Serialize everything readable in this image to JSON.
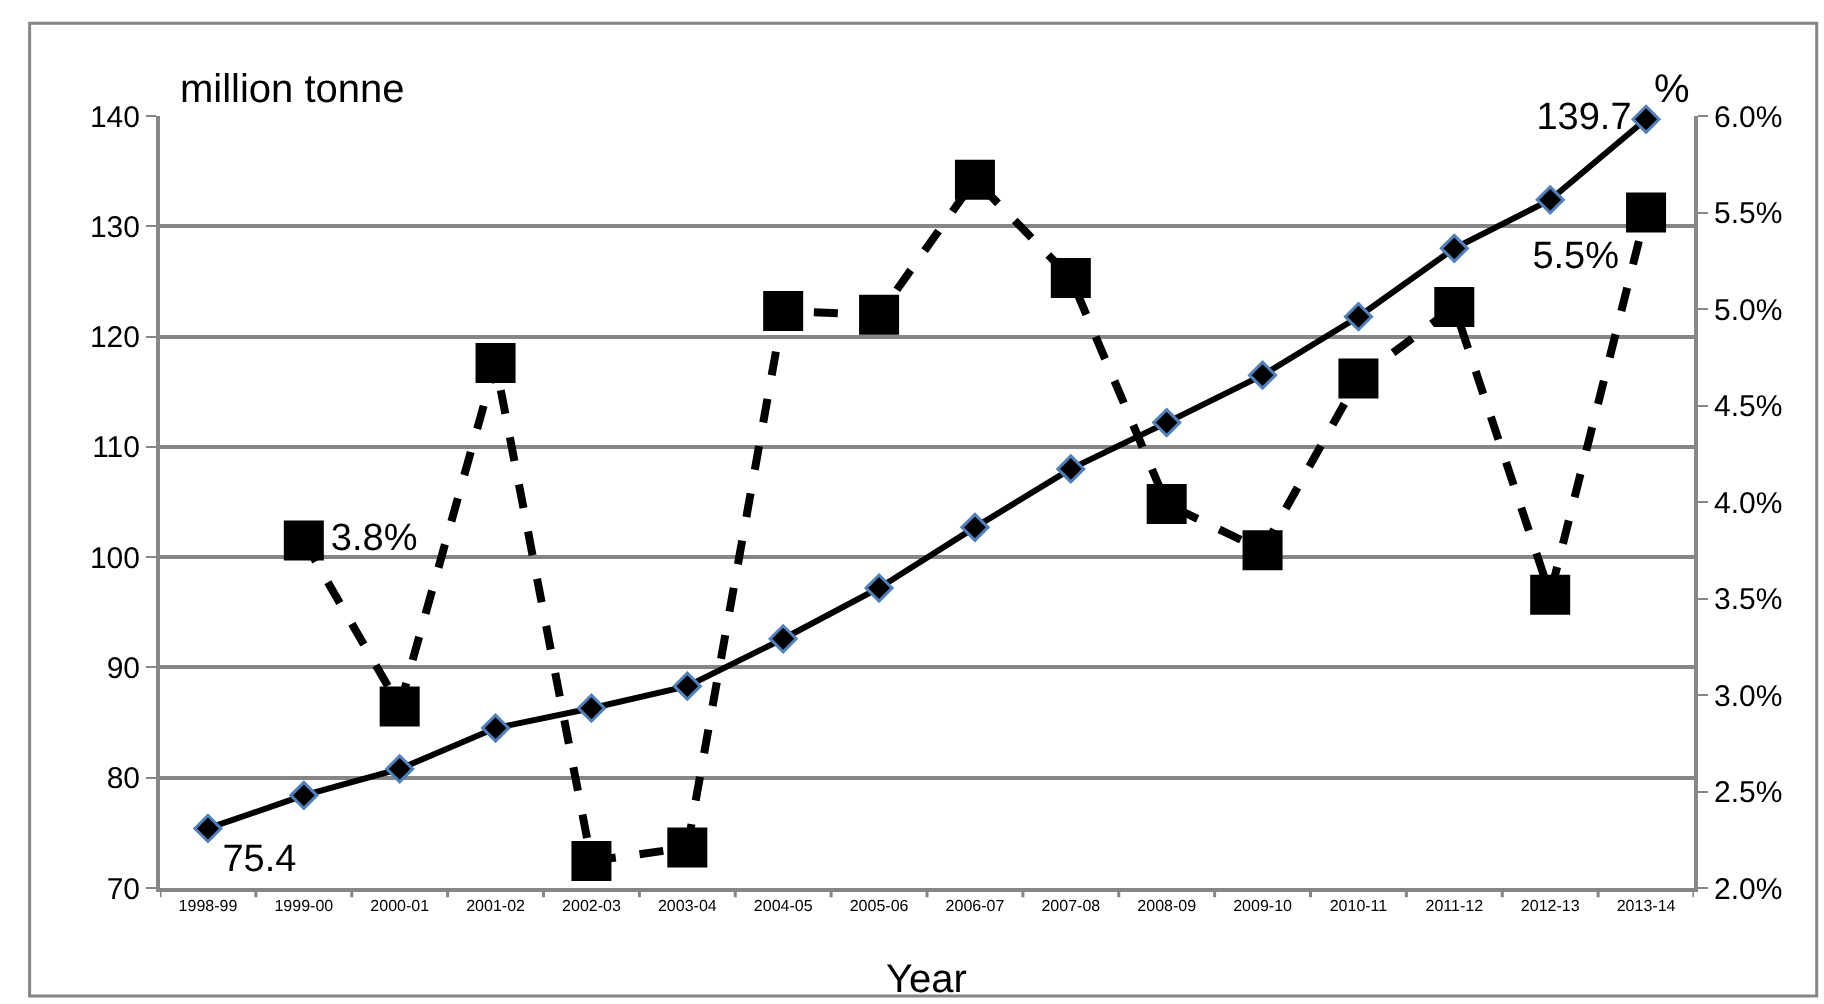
{
  "chart_data": {
    "type": "line",
    "xlabel": "Year",
    "ylabel": "million tonne",
    "y2label": "%",
    "categories": [
      "1998-99",
      "1999-00",
      "2000-01",
      "2001-02",
      "2002-03",
      "2003-04",
      "2004-05",
      "2005-06",
      "2006-07",
      "2007-08",
      "2008-09",
      "2009-10",
      "2010-11",
      "2011-12",
      "2012-13",
      "2013-14"
    ],
    "series": [
      {
        "color": "#000000",
        "marker": "diamond",
        "line_style": "solid",
        "values": [
          75.4,
          78.4,
          80.8,
          84.5,
          86.3,
          88.3,
          92.6,
          97.2,
          102.7,
          108.0,
          112.2,
          116.5,
          121.8,
          128.0,
          132.4,
          139.7
        ],
        "value_labels": [
          "75.4",
          null,
          null,
          null,
          null,
          null,
          null,
          null,
          null,
          null,
          null,
          null,
          null,
          null,
          null,
          "139.7"
        ]
      },
      {
        "color": "#000000",
        "marker": "square",
        "line_style": "dashed",
        "axis": "y2",
        "values": [
          null,
          3.8,
          2.94,
          4.72,
          2.14,
          2.21,
          4.99,
          4.97,
          5.67,
          5.16,
          3.99,
          3.75,
          4.64,
          5.01,
          3.52,
          5.5
        ],
        "value_labels": [
          null,
          "3.8%",
          null,
          null,
          null,
          null,
          null,
          null,
          null,
          null,
          null,
          null,
          null,
          null,
          null,
          "5.5%"
        ]
      }
    ],
    "ylim": [
      70,
      140
    ],
    "yticks": [
      70,
      80,
      90,
      100,
      110,
      120,
      130,
      140
    ],
    "y2lim": [
      2.0,
      6.0
    ],
    "y2ticks": [
      {
        "value": 2.0,
        "label": "2.0%"
      },
      {
        "value": 2.5,
        "label": "2.5%"
      },
      {
        "value": 3.0,
        "label": "3.0%"
      },
      {
        "value": 3.5,
        "label": "3.5%"
      },
      {
        "value": 4.0,
        "label": "4.0%"
      },
      {
        "value": 4.5,
        "label": "4.5%"
      },
      {
        "value": 5.0,
        "label": "5.0%"
      },
      {
        "value": 5.5,
        "label": "5.5%"
      },
      {
        "value": 6.0,
        "label": "6.0%"
      }
    ],
    "grid": "y"
  }
}
